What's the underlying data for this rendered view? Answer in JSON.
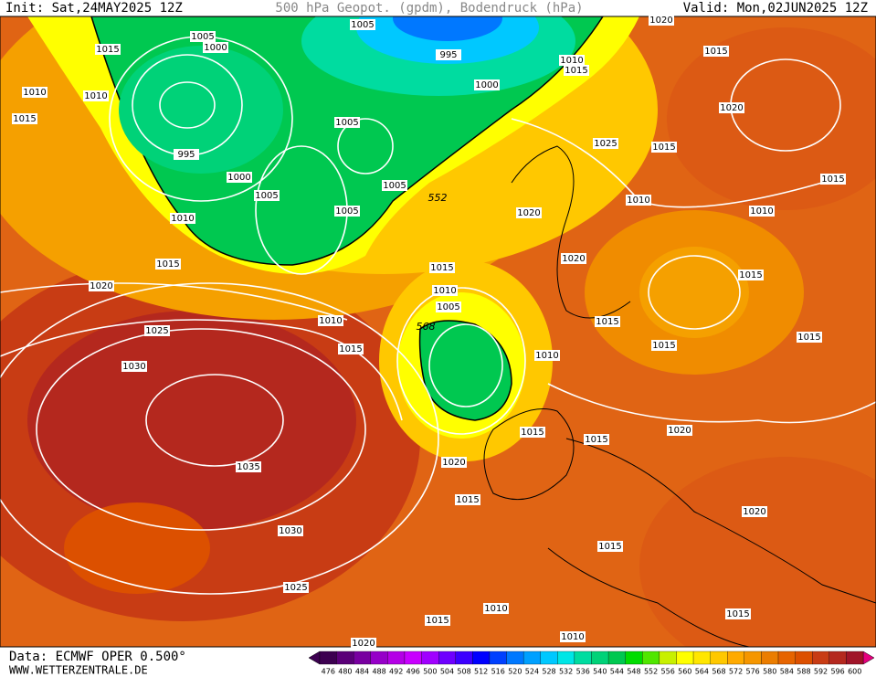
{
  "header": {
    "init": "Init: Sat,24MAY2025 12Z",
    "title": "500 hPa Geopot. (gpdm), Bodendruck (hPa)",
    "valid": "Valid: Mon,02JUN2025 12Z"
  },
  "footer": {
    "data": "Data: ECMWF OPER 0.500°",
    "site": "WWW.WETTERZENTRALE.DE"
  },
  "map": {
    "isobar_labels": [
      "1005",
      "1000",
      "1015",
      "1005",
      "995",
      "1000",
      "1010",
      "1015",
      "1020",
      "1015",
      "1010",
      "1010",
      "1015",
      "1020",
      "995",
      "1005",
      "1000",
      "1005",
      "1005",
      "1005",
      "1010",
      "1025",
      "1015",
      "1015",
      "1010",
      "1010",
      "1020",
      "1020",
      "1015",
      "1015",
      "1015",
      "1020",
      "1010",
      "1005",
      "1010",
      "1015",
      "1025",
      "1015",
      "1010",
      "1015",
      "1015",
      "1030",
      "1020",
      "1015",
      "1015",
      "1035",
      "1020",
      "1015",
      "1030",
      "1020",
      "1015",
      "1025",
      "1010",
      "1015",
      "1015",
      "1020",
      "1010"
    ],
    "geopotential_labels": [
      "552",
      "568"
    ]
  },
  "colorbar": {
    "levels": [
      476,
      480,
      484,
      488,
      492,
      496,
      500,
      504,
      508,
      512,
      516,
      520,
      524,
      528,
      532,
      536,
      540,
      544,
      548,
      552,
      556,
      560,
      564,
      568,
      572,
      576,
      580,
      584,
      588,
      592,
      596,
      600
    ],
    "colors": [
      "#3c0050",
      "#5a0078",
      "#7800a0",
      "#9600c8",
      "#b400e6",
      "#c800ff",
      "#a000ff",
      "#6e00ff",
      "#3c00ff",
      "#0000ff",
      "#0040ff",
      "#0078ff",
      "#00a0ff",
      "#00c8ff",
      "#00e6e6",
      "#00dca0",
      "#00d278",
      "#00c850",
      "#00dc00",
      "#50e600",
      "#c8f000",
      "#ffff00",
      "#ffe600",
      "#ffc800",
      "#ffaa00",
      "#f59600",
      "#eb7d00",
      "#e66400",
      "#dc5000",
      "#c83c14",
      "#b4281e",
      "#a01428"
    ]
  }
}
